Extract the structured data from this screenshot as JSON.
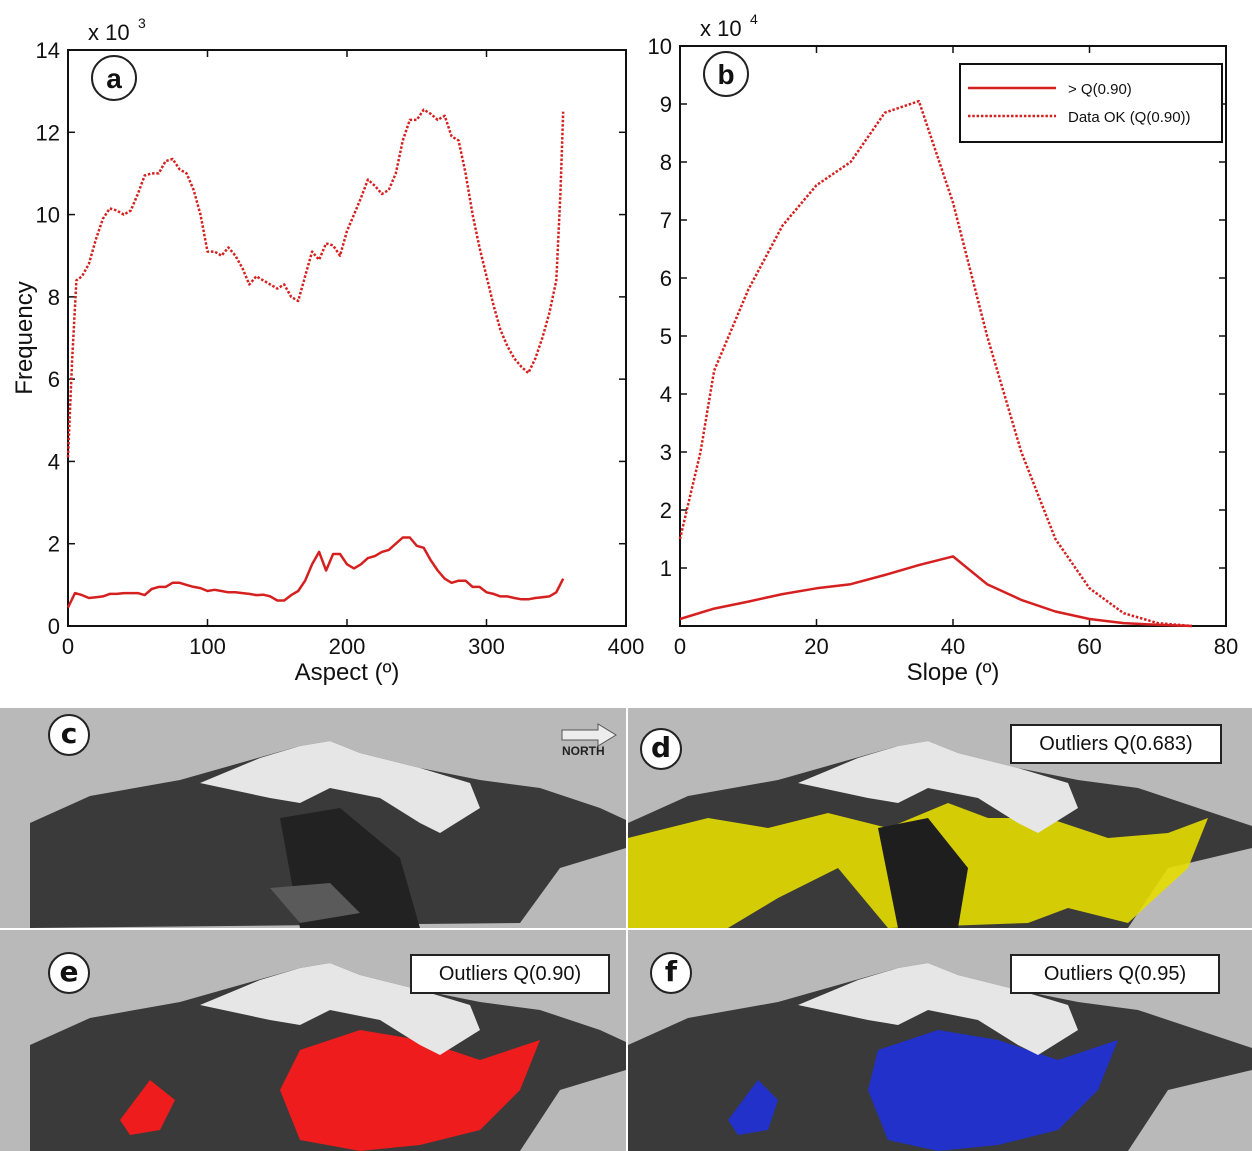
{
  "chart_data": [
    {
      "type": "line",
      "panel_label": "a",
      "xlabel": "Aspect (º)",
      "ylabel": "Frequency",
      "y_multiplier": "x 10",
      "y_exponent": "3",
      "xlim": [
        0,
        400
      ],
      "ylim": [
        0,
        14
      ],
      "x_ticks": [
        0,
        100,
        200,
        300,
        400
      ],
      "y_ticks": [
        0,
        2,
        4,
        6,
        8,
        10,
        12,
        14
      ],
      "grid": false,
      "series": [
        {
          "style": "dotted",
          "color": "#d62020",
          "points": [
            [
              0,
              4.1
            ],
            [
              3,
              6.5
            ],
            [
              6,
              8.4
            ],
            [
              10,
              8.5
            ],
            [
              15,
              8.8
            ],
            [
              20,
              9.4
            ],
            [
              25,
              9.9
            ],
            [
              30,
              10.15
            ],
            [
              35,
              10.1
            ],
            [
              40,
              10.0
            ],
            [
              45,
              10.1
            ],
            [
              50,
              10.5
            ],
            [
              55,
              10.95
            ],
            [
              60,
              11.0
            ],
            [
              65,
              11.0
            ],
            [
              70,
              11.3
            ],
            [
              75,
              11.35
            ],
            [
              80,
              11.1
            ],
            [
              85,
              11.0
            ],
            [
              90,
              10.6
            ],
            [
              95,
              10.0
            ],
            [
              100,
              9.1
            ],
            [
              105,
              9.1
            ],
            [
              110,
              9.0
            ],
            [
              115,
              9.2
            ],
            [
              120,
              9.0
            ],
            [
              125,
              8.7
            ],
            [
              130,
              8.3
            ],
            [
              135,
              8.5
            ],
            [
              140,
              8.4
            ],
            [
              145,
              8.3
            ],
            [
              150,
              8.2
            ],
            [
              155,
              8.3
            ],
            [
              160,
              8.0
            ],
            [
              165,
              7.9
            ],
            [
              170,
              8.5
            ],
            [
              175,
              9.1
            ],
            [
              180,
              8.9
            ],
            [
              185,
              9.3
            ],
            [
              190,
              9.25
            ],
            [
              195,
              9.0
            ],
            [
              200,
              9.6
            ],
            [
              205,
              10.0
            ],
            [
              210,
              10.4
            ],
            [
              215,
              10.85
            ],
            [
              220,
              10.7
            ],
            [
              225,
              10.5
            ],
            [
              230,
              10.6
            ],
            [
              235,
              11.0
            ],
            [
              240,
              11.8
            ],
            [
              245,
              12.3
            ],
            [
              250,
              12.3
            ],
            [
              255,
              12.55
            ],
            [
              260,
              12.45
            ],
            [
              265,
              12.3
            ],
            [
              270,
              12.4
            ],
            [
              275,
              11.9
            ],
            [
              280,
              11.8
            ],
            [
              285,
              11.0
            ],
            [
              290,
              10.0
            ],
            [
              295,
              9.2
            ],
            [
              300,
              8.5
            ],
            [
              305,
              7.8
            ],
            [
              310,
              7.2
            ],
            [
              315,
              6.8
            ],
            [
              320,
              6.5
            ],
            [
              325,
              6.3
            ],
            [
              330,
              6.15
            ],
            [
              335,
              6.5
            ],
            [
              340,
              7.0
            ],
            [
              345,
              7.6
            ],
            [
              350,
              8.4
            ],
            [
              353,
              10.5
            ],
            [
              355,
              12.5
            ]
          ]
        },
        {
          "style": "solid",
          "color": "#d62020",
          "points": [
            [
              0,
              0.45
            ],
            [
              5,
              0.8
            ],
            [
              10,
              0.75
            ],
            [
              15,
              0.68
            ],
            [
              20,
              0.7
            ],
            [
              25,
              0.72
            ],
            [
              30,
              0.78
            ],
            [
              35,
              0.78
            ],
            [
              40,
              0.8
            ],
            [
              45,
              0.8
            ],
            [
              50,
              0.8
            ],
            [
              55,
              0.75
            ],
            [
              60,
              0.9
            ],
            [
              65,
              0.95
            ],
            [
              70,
              0.95
            ],
            [
              75,
              1.05
            ],
            [
              80,
              1.05
            ],
            [
              85,
              1.0
            ],
            [
              90,
              0.95
            ],
            [
              95,
              0.92
            ],
            [
              100,
              0.85
            ],
            [
              105,
              0.88
            ],
            [
              110,
              0.85
            ],
            [
              115,
              0.82
            ],
            [
              120,
              0.82
            ],
            [
              125,
              0.8
            ],
            [
              130,
              0.78
            ],
            [
              135,
              0.75
            ],
            [
              140,
              0.76
            ],
            [
              145,
              0.72
            ],
            [
              150,
              0.62
            ],
            [
              155,
              0.62
            ],
            [
              160,
              0.75
            ],
            [
              165,
              0.85
            ],
            [
              170,
              1.1
            ],
            [
              175,
              1.5
            ],
            [
              180,
              1.8
            ],
            [
              185,
              1.35
            ],
            [
              190,
              1.75
            ],
            [
              195,
              1.75
            ],
            [
              200,
              1.5
            ],
            [
              205,
              1.4
            ],
            [
              210,
              1.5
            ],
            [
              215,
              1.65
            ],
            [
              220,
              1.7
            ],
            [
              225,
              1.8
            ],
            [
              230,
              1.85
            ],
            [
              235,
              2.0
            ],
            [
              240,
              2.15
            ],
            [
              245,
              2.15
            ],
            [
              250,
              1.95
            ],
            [
              255,
              1.9
            ],
            [
              260,
              1.6
            ],
            [
              265,
              1.35
            ],
            [
              270,
              1.15
            ],
            [
              275,
              1.05
            ],
            [
              280,
              1.1
            ],
            [
              285,
              1.1
            ],
            [
              290,
              0.95
            ],
            [
              295,
              0.95
            ],
            [
              300,
              0.82
            ],
            [
              305,
              0.78
            ],
            [
              310,
              0.72
            ],
            [
              315,
              0.72
            ],
            [
              320,
              0.68
            ],
            [
              325,
              0.65
            ],
            [
              330,
              0.65
            ],
            [
              335,
              0.68
            ],
            [
              340,
              0.7
            ],
            [
              345,
              0.72
            ],
            [
              350,
              0.82
            ],
            [
              355,
              1.15
            ]
          ]
        }
      ]
    },
    {
      "type": "line",
      "panel_label": "b",
      "xlabel": "Slope (º)",
      "ylabel": "",
      "y_multiplier": "x 10",
      "y_exponent": "4",
      "xlim": [
        0,
        80
      ],
      "ylim": [
        0,
        10
      ],
      "x_ticks": [
        0,
        20,
        40,
        60,
        80
      ],
      "y_ticks": [
        1,
        2,
        3,
        4,
        5,
        6,
        7,
        8,
        9,
        10
      ],
      "grid": false,
      "legend_position": "top-right",
      "series": [
        {
          "name": "> Q(0.90)",
          "style": "solid",
          "color": "#d62020",
          "points": [
            [
              0,
              0.12
            ],
            [
              5,
              0.3
            ],
            [
              10,
              0.42
            ],
            [
              15,
              0.55
            ],
            [
              20,
              0.65
            ],
            [
              25,
              0.72
            ],
            [
              30,
              0.88
            ],
            [
              35,
              1.05
            ],
            [
              40,
              1.2
            ],
            [
              45,
              0.72
            ],
            [
              50,
              0.45
            ],
            [
              55,
              0.25
            ],
            [
              60,
              0.12
            ],
            [
              65,
              0.05
            ],
            [
              70,
              0.02
            ],
            [
              75,
              0.0
            ]
          ]
        },
        {
          "name": "Data OK (Q(0.90))",
          "style": "dotted",
          "color": "#d62020",
          "points": [
            [
              0,
              1.5
            ],
            [
              3,
              3.0
            ],
            [
              5,
              4.4
            ],
            [
              10,
              5.8
            ],
            [
              15,
              6.9
            ],
            [
              20,
              7.6
            ],
            [
              25,
              8.0
            ],
            [
              30,
              8.85
            ],
            [
              35,
              9.05
            ],
            [
              40,
              7.3
            ],
            [
              45,
              5.0
            ],
            [
              50,
              3.0
            ],
            [
              55,
              1.5
            ],
            [
              60,
              0.65
            ],
            [
              65,
              0.22
            ],
            [
              70,
              0.05
            ],
            [
              75,
              0.0
            ]
          ]
        }
      ]
    }
  ],
  "panels": [
    {
      "label": "c",
      "caption": ""
    },
    {
      "label": "d",
      "caption": "Outliers Q(0.683)"
    },
    {
      "label": "e",
      "caption": "Outliers Q(0.90)"
    },
    {
      "label": "f",
      "caption": "Outliers Q(0.95)"
    }
  ],
  "north_label": "NORTH",
  "colors": {
    "series": "#d62020",
    "panel_background": "#b9b9b9",
    "terrain": "#3a3a3a",
    "snow": "#e8e8e8",
    "outliers_d": "#e8e000",
    "outliers_e": "#ee1c1c",
    "outliers_f": "#2030c8"
  }
}
